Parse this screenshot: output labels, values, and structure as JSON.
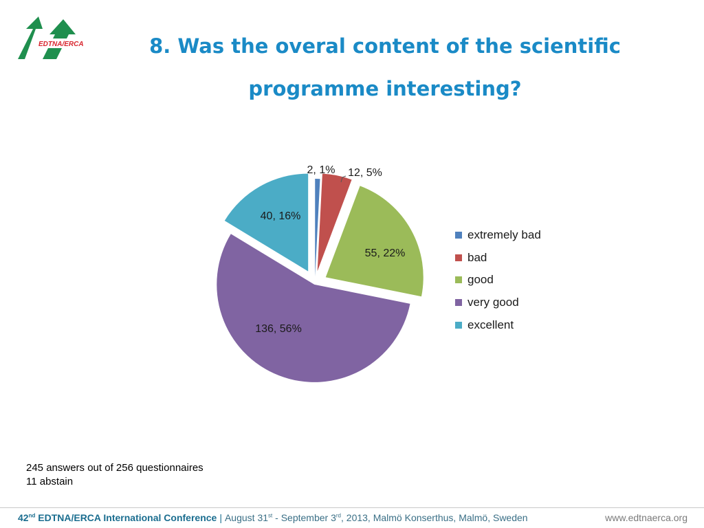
{
  "logo_text": "EDTNA/ERCA",
  "title_lines": [
    "8. Was the overal content of the scientific",
    "programme interesting?"
  ],
  "chart_data": {
    "type": "pie",
    "title": "8. Was the overal content of the scientific programme interesting?",
    "categories": [
      "extremely bad",
      "bad",
      "good",
      "very good",
      "excellent"
    ],
    "values": [
      2,
      12,
      55,
      136,
      40
    ],
    "percentages": [
      1,
      5,
      22,
      56,
      16
    ],
    "labels": [
      "2, 1%",
      "12, 5%",
      "55, 22%",
      "136, 56%",
      "40, 16%"
    ],
    "colors": [
      "#4f81bd",
      "#c0504d",
      "#9bbb59",
      "#8064a2",
      "#4bacc6"
    ],
    "exploded": true,
    "legend_position": "right"
  },
  "notes": [
    "245 answers out of 256 questionnaires",
    "11 abstain"
  ],
  "footer": {
    "conference_ordinal": "42",
    "ordinal_suffix": "nd",
    "conference_name": "EDTNA/ERCA International Conference",
    "separator": "|",
    "date_part1": "August 31",
    "date_suffix1": "st",
    "date_part2": " - September 3",
    "date_suffix2": "rd",
    "date_rest": ", 2013, Malmö Konserthus, Malmö, Sweden",
    "website": "www.edtnaerca.org"
  }
}
